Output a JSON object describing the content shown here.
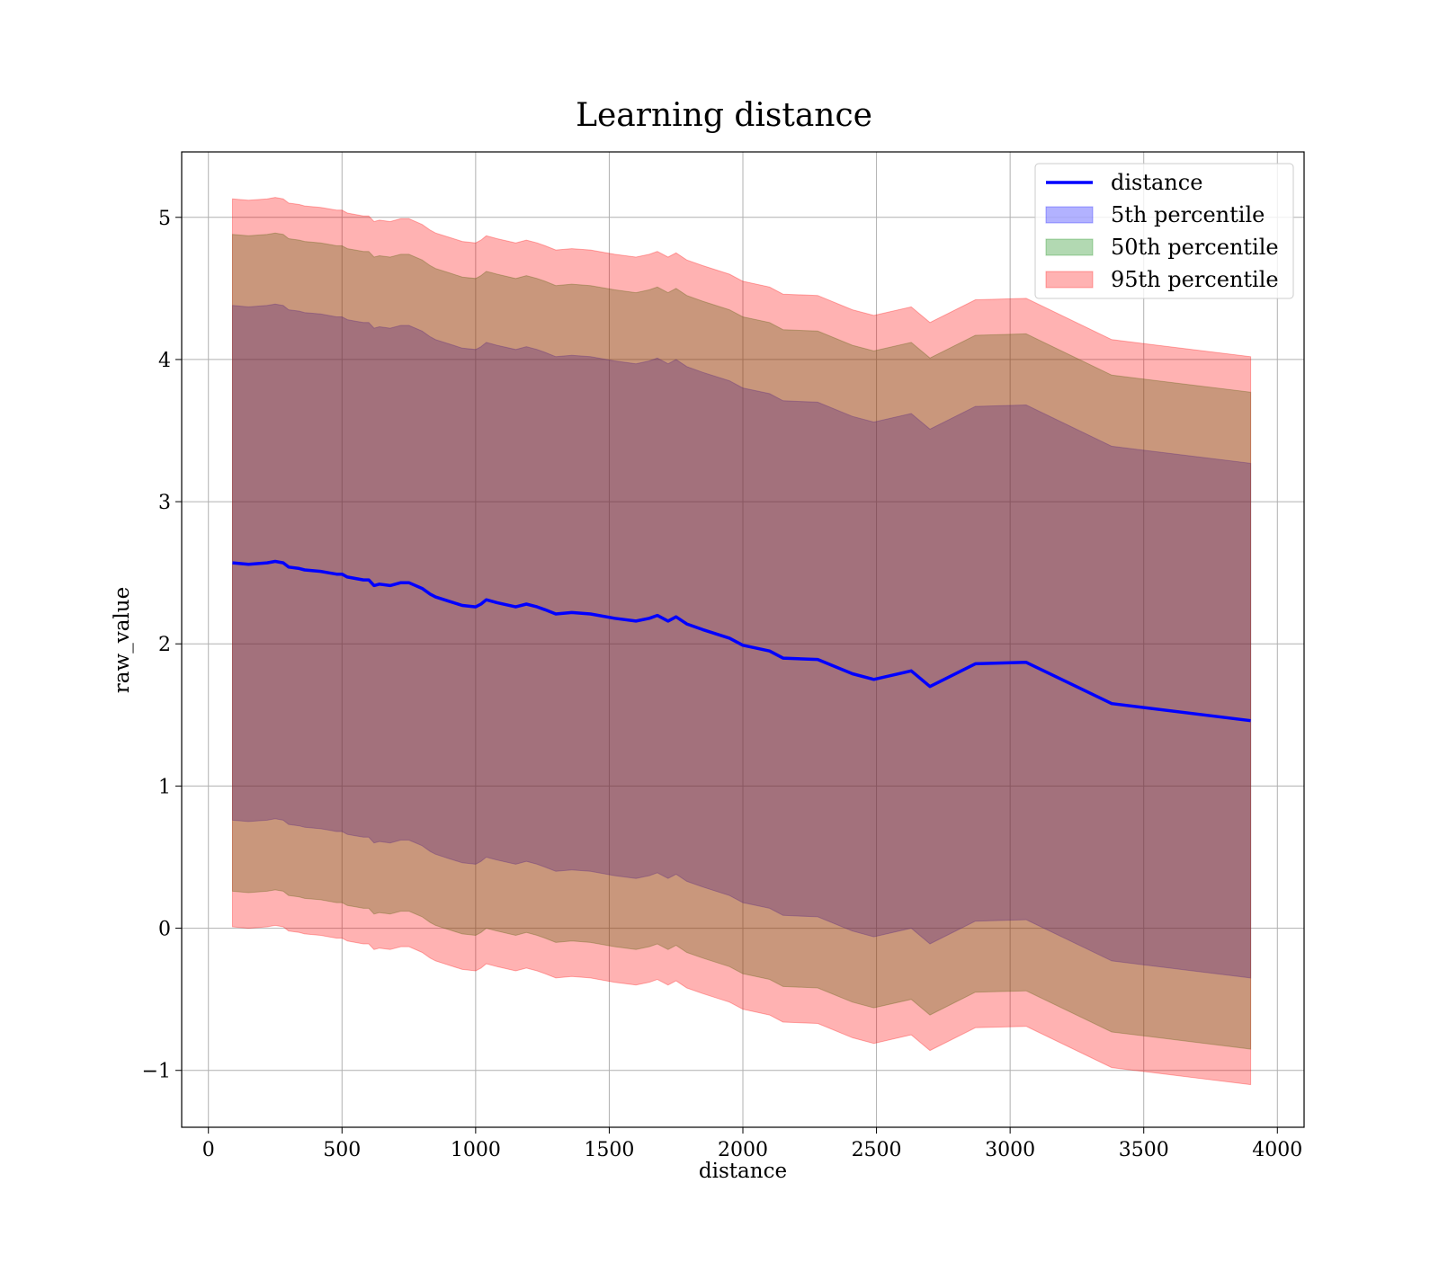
{
  "chart_data": {
    "type": "line",
    "title": "Learning distance",
    "xlabel": "distance",
    "ylabel": "raw_value",
    "xlim": [
      -100,
      4100
    ],
    "ylim": [
      -1.4,
      5.46
    ],
    "xticks": [
      0,
      500,
      1000,
      1500,
      2000,
      2500,
      3000,
      3500,
      4000
    ],
    "xtick_labels": [
      "0",
      "500",
      "1000",
      "1500",
      "2000",
      "2500",
      "3000",
      "3500",
      "4000"
    ],
    "yticks": [
      -1,
      0,
      1,
      2,
      3,
      4,
      5
    ],
    "ytick_labels": [
      "−1",
      "0",
      "1",
      "2",
      "3",
      "4",
      "5"
    ],
    "grid": true,
    "legend_position": "top-right",
    "x": [
      90,
      150,
      220,
      250,
      280,
      300,
      340,
      360,
      420,
      450,
      480,
      500,
      520,
      550,
      580,
      600,
      620,
      640,
      680,
      720,
      750,
      800,
      830,
      850,
      900,
      950,
      1000,
      1020,
      1040,
      1060,
      1080,
      1150,
      1190,
      1230,
      1260,
      1300,
      1360,
      1430,
      1520,
      1600,
      1650,
      1680,
      1720,
      1750,
      1790,
      1850,
      1950,
      2000,
      2100,
      2150,
      2280,
      2410,
      2490,
      2630,
      2700,
      2870,
      3060,
      3380,
      3900
    ],
    "series": [
      {
        "name": "distance",
        "kind": "line",
        "color": "#0000ff",
        "values": [
          2.57,
          2.56,
          2.57,
          2.58,
          2.57,
          2.54,
          2.53,
          2.52,
          2.51,
          2.5,
          2.49,
          2.49,
          2.47,
          2.46,
          2.45,
          2.45,
          2.41,
          2.42,
          2.41,
          2.43,
          2.43,
          2.39,
          2.35,
          2.33,
          2.3,
          2.27,
          2.26,
          2.28,
          2.31,
          2.3,
          2.29,
          2.26,
          2.28,
          2.26,
          2.24,
          2.21,
          2.22,
          2.21,
          2.18,
          2.16,
          2.18,
          2.2,
          2.16,
          2.19,
          2.14,
          2.1,
          2.04,
          1.99,
          1.95,
          1.9,
          1.89,
          1.79,
          1.75,
          1.81,
          1.7,
          1.86,
          1.87,
          1.58,
          1.46
        ]
      },
      {
        "name": "5th percentile",
        "kind": "band",
        "color": "#0000ff",
        "lower": [
          0.76,
          0.75,
          0.76,
          0.77,
          0.76,
          0.73,
          0.72,
          0.71,
          0.7,
          0.69,
          0.68,
          0.68,
          0.66,
          0.65,
          0.64,
          0.64,
          0.6,
          0.61,
          0.6,
          0.62,
          0.62,
          0.58,
          0.54,
          0.52,
          0.49,
          0.46,
          0.45,
          0.47,
          0.5,
          0.49,
          0.48,
          0.45,
          0.47,
          0.45,
          0.43,
          0.4,
          0.41,
          0.4,
          0.37,
          0.35,
          0.37,
          0.39,
          0.35,
          0.38,
          0.33,
          0.29,
          0.23,
          0.18,
          0.14,
          0.09,
          0.08,
          -0.02,
          -0.06,
          0.0,
          -0.11,
          0.05,
          0.06,
          -0.23,
          -0.35
        ],
        "upper": [
          4.38,
          4.37,
          4.38,
          4.39,
          4.38,
          4.35,
          4.34,
          4.33,
          4.32,
          4.31,
          4.3,
          4.3,
          4.28,
          4.27,
          4.26,
          4.26,
          4.22,
          4.23,
          4.22,
          4.24,
          4.24,
          4.2,
          4.16,
          4.14,
          4.11,
          4.08,
          4.07,
          4.09,
          4.12,
          4.11,
          4.1,
          4.07,
          4.09,
          4.07,
          4.05,
          4.02,
          4.03,
          4.02,
          3.99,
          3.97,
          3.99,
          4.01,
          3.97,
          4.0,
          3.95,
          3.91,
          3.85,
          3.8,
          3.76,
          3.71,
          3.7,
          3.6,
          3.56,
          3.62,
          3.51,
          3.67,
          3.68,
          3.39,
          3.27
        ]
      },
      {
        "name": "50th percentile",
        "kind": "band",
        "color": "#008000",
        "lower": [
          0.26,
          0.25,
          0.26,
          0.27,
          0.26,
          0.23,
          0.22,
          0.21,
          0.2,
          0.19,
          0.18,
          0.18,
          0.16,
          0.15,
          0.14,
          0.14,
          0.1,
          0.11,
          0.1,
          0.12,
          0.12,
          0.08,
          0.04,
          0.02,
          -0.01,
          -0.04,
          -0.05,
          -0.03,
          0.0,
          -0.01,
          -0.02,
          -0.05,
          -0.03,
          -0.05,
          -0.07,
          -0.1,
          -0.09,
          -0.1,
          -0.13,
          -0.15,
          -0.13,
          -0.11,
          -0.15,
          -0.12,
          -0.17,
          -0.21,
          -0.27,
          -0.32,
          -0.36,
          -0.41,
          -0.42,
          -0.52,
          -0.56,
          -0.5,
          -0.61,
          -0.45,
          -0.44,
          -0.73,
          -0.85
        ],
        "upper": [
          4.88,
          4.87,
          4.88,
          4.89,
          4.88,
          4.85,
          4.84,
          4.83,
          4.82,
          4.81,
          4.8,
          4.8,
          4.78,
          4.77,
          4.76,
          4.76,
          4.72,
          4.73,
          4.72,
          4.74,
          4.74,
          4.7,
          4.66,
          4.64,
          4.61,
          4.58,
          4.57,
          4.59,
          4.62,
          4.61,
          4.6,
          4.57,
          4.59,
          4.57,
          4.55,
          4.52,
          4.53,
          4.52,
          4.49,
          4.47,
          4.49,
          4.51,
          4.47,
          4.5,
          4.45,
          4.41,
          4.35,
          4.3,
          4.26,
          4.21,
          4.2,
          4.1,
          4.06,
          4.12,
          4.01,
          4.17,
          4.18,
          3.89,
          3.77
        ]
      },
      {
        "name": "95th percentile",
        "kind": "band",
        "color": "#ff0000",
        "lower": [
          0.01,
          0.0,
          0.01,
          0.02,
          0.01,
          -0.02,
          -0.03,
          -0.04,
          -0.05,
          -0.06,
          -0.07,
          -0.07,
          -0.09,
          -0.1,
          -0.11,
          -0.11,
          -0.15,
          -0.14,
          -0.15,
          -0.13,
          -0.13,
          -0.17,
          -0.21,
          -0.23,
          -0.26,
          -0.29,
          -0.3,
          -0.28,
          -0.25,
          -0.26,
          -0.27,
          -0.3,
          -0.28,
          -0.3,
          -0.32,
          -0.35,
          -0.34,
          -0.35,
          -0.38,
          -0.4,
          -0.38,
          -0.36,
          -0.4,
          -0.37,
          -0.42,
          -0.46,
          -0.52,
          -0.57,
          -0.61,
          -0.66,
          -0.67,
          -0.77,
          -0.81,
          -0.75,
          -0.86,
          -0.7,
          -0.69,
          -0.98,
          -1.1
        ],
        "upper": [
          5.13,
          5.12,
          5.13,
          5.14,
          5.13,
          5.1,
          5.09,
          5.08,
          5.07,
          5.06,
          5.05,
          5.05,
          5.03,
          5.02,
          5.01,
          5.01,
          4.97,
          4.98,
          4.97,
          4.99,
          4.99,
          4.95,
          4.91,
          4.89,
          4.86,
          4.83,
          4.82,
          4.84,
          4.87,
          4.86,
          4.85,
          4.82,
          4.84,
          4.82,
          4.8,
          4.77,
          4.78,
          4.77,
          4.74,
          4.72,
          4.74,
          4.76,
          4.72,
          4.75,
          4.7,
          4.66,
          4.6,
          4.55,
          4.51,
          4.46,
          4.45,
          4.35,
          4.31,
          4.37,
          4.26,
          4.42,
          4.43,
          4.14,
          4.02
        ]
      }
    ]
  }
}
